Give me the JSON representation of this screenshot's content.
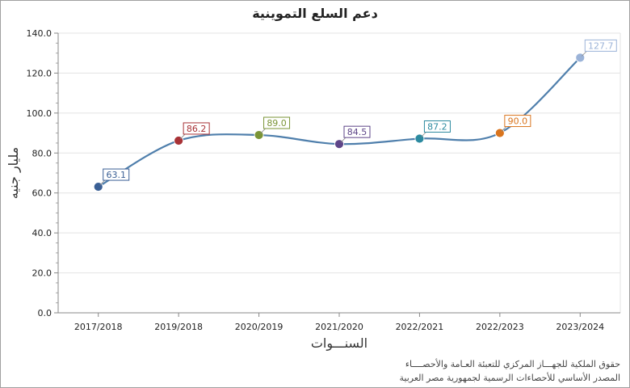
{
  "chart_data": {
    "type": "line",
    "title": "دعم السلع التموينية",
    "xlabel": "السنـــوات",
    "ylabel": "مليار جنيه",
    "categories": [
      "2017/2018",
      "2019/2018",
      "2020/2019",
      "2021/2020",
      "2022/2021",
      "2022/2023",
      "2023/2024"
    ],
    "series": [
      {
        "values": [
          63.1,
          86.2,
          89.0,
          84.5,
          87.2,
          90.0,
          127.7
        ]
      }
    ],
    "value_labels": [
      "63.1",
      "86.2",
      "89.0",
      "84.5",
      "87.2",
      "90.0",
      "127.7"
    ],
    "ylim": [
      0,
      140
    ],
    "yticks": [
      "0.0",
      "20.0",
      "40.0",
      "60.0",
      "80.0",
      "100.0",
      "120.0",
      "140.0"
    ],
    "grid": true,
    "line_color": "#4f7fac",
    "point_colors": [
      "#3a5f95",
      "#a83236",
      "#7a9436",
      "#5e4588",
      "#2c8aa0",
      "#d9741d",
      "#9bb3d8"
    ]
  },
  "footer": {
    "line1": "حقوق الملكية للجهـــاز المركزي للتعبئة العـامة والأحصــــاء",
    "line2": "المصدر الأساسي للأحصاءات الرسمية لجمهورية مصر العربية"
  }
}
